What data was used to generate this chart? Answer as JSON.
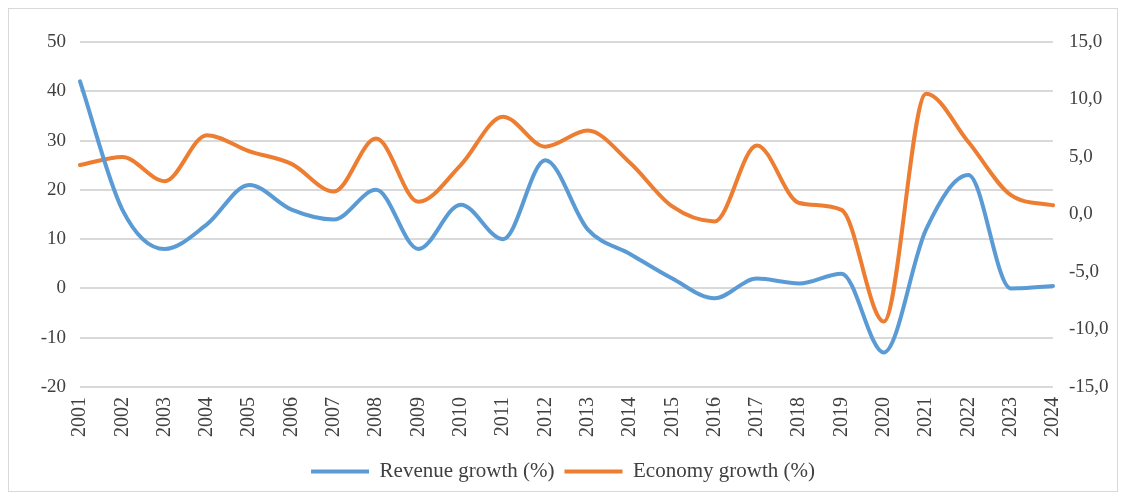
{
  "chart_data": {
    "type": "line",
    "categories": [
      "2001",
      "2002",
      "2003",
      "2004",
      "2005",
      "2006",
      "2007",
      "2008",
      "2009",
      "2010",
      "2011",
      "2012",
      "2013",
      "2014",
      "2015",
      "2016",
      "2017",
      "2018",
      "2019",
      "2020",
      "2021",
      "2022",
      "2023",
      "2024"
    ],
    "series": [
      {
        "name": "Revenue growth (%)",
        "color": "#5b9bd5",
        "values": [
          42,
          16,
          8,
          13,
          21,
          16,
          14,
          20,
          8,
          17,
          10,
          26,
          12,
          7,
          2,
          -2,
          2,
          1,
          3,
          -13,
          12,
          23,
          0,
          0.5
        ]
      },
      {
        "name": "Economy growth (%)",
        "color": "#ed7d31",
        "axis": "y2",
        "values": [
          4.3,
          5.0,
          2.9,
          6.9,
          5.5,
          4.4,
          2.0,
          6.6,
          1.1,
          4.3,
          8.5,
          5.9,
          7.3,
          4.5,
          0.7,
          -0.6,
          6.0,
          1.0,
          0.4,
          -9.3,
          10.5,
          6.3,
          1.7,
          0.8
        ]
      }
    ],
    "ylim": [
      -20,
      50
    ],
    "yticks": [
      -20,
      -10,
      0,
      10,
      20,
      30,
      40,
      50
    ],
    "y2lim": [
      -15,
      15
    ],
    "y2ticks": [
      {
        "value": -15,
        "label": "-15,0"
      },
      {
        "value": -10,
        "label": "-10,0"
      },
      {
        "value": -5,
        "label": "-5,0"
      },
      {
        "value": 0,
        "label": "0,0"
      },
      {
        "value": 5,
        "label": "5,0"
      },
      {
        "value": 10,
        "label": "10,0"
      },
      {
        "value": 15,
        "label": "15,0"
      }
    ],
    "grid": "y",
    "legend": "bottom",
    "marker": "none",
    "line_style": "solid"
  }
}
